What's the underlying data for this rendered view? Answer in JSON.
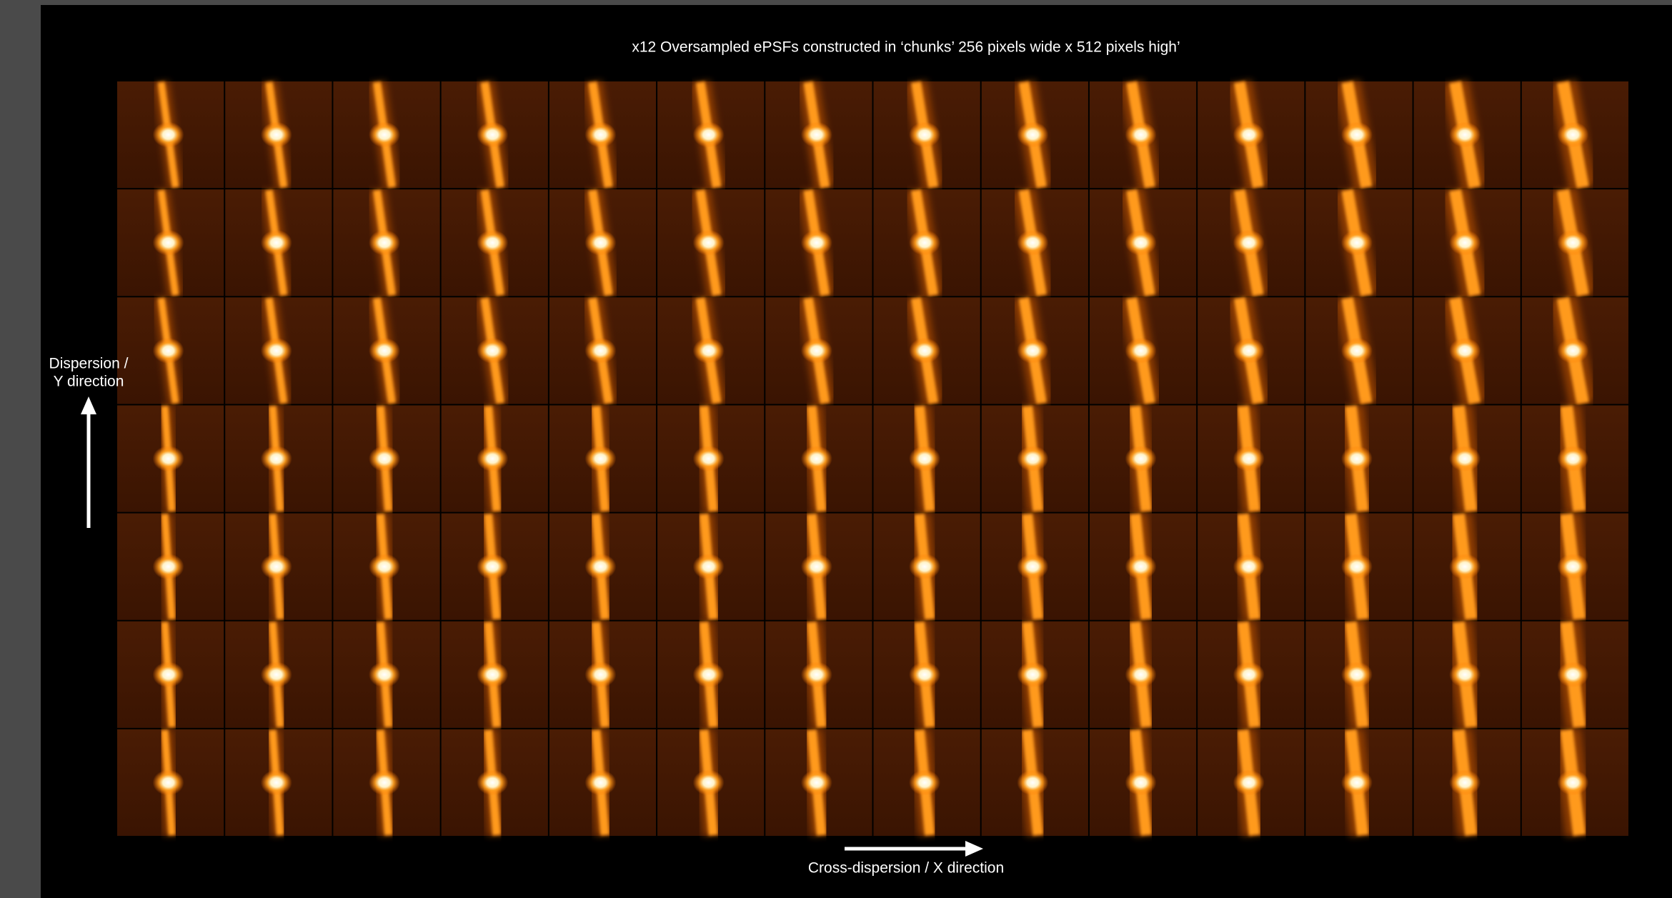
{
  "title": "x12 Oversampled ePSFs constructed in ‘chunks’ 256 pixels wide x 512 pixels high’",
  "y_label": [
    "Dispersion /",
    "Y direction"
  ],
  "x_label": "Cross-dispersion / X direction"
}
